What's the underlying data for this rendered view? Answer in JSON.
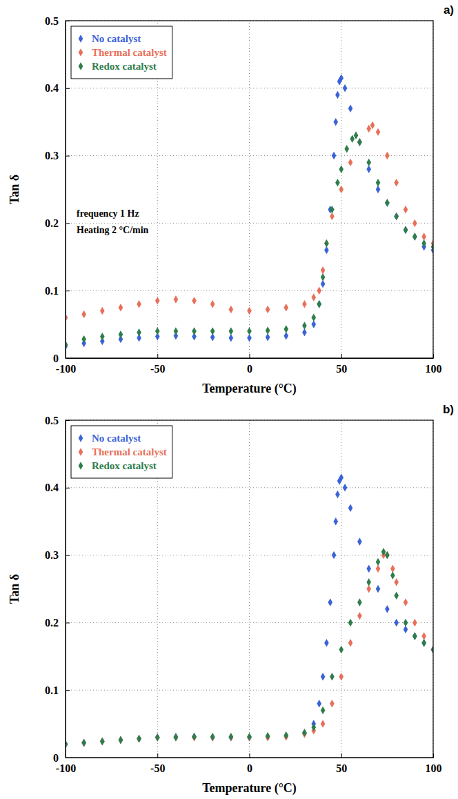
{
  "chart_data": [
    {
      "type": "scatter",
      "title": "a)",
      "xlabel": "Temperature (°C)",
      "ylabel": "Tan δ",
      "xlim": [
        -100,
        100
      ],
      "xticks": [
        -100,
        -50,
        0,
        50,
        100
      ],
      "ylim": [
        0,
        0.5
      ],
      "yticks": [
        0,
        0.1,
        0.2,
        0.3,
        0.4,
        0.5
      ],
      "grid": true,
      "legend": "upper left",
      "marker": "diamond",
      "annotations": [
        "frequency 1 Hz",
        "Heating 2 °C/min"
      ],
      "series": [
        {
          "name": "No catalyst",
          "color": "#3a63d6",
          "x": [
            -100,
            -90,
            -80,
            -70,
            -60,
            -50,
            -40,
            -30,
            -20,
            -10,
            0,
            10,
            20,
            30,
            35,
            38,
            40,
            42,
            44,
            46,
            47,
            48,
            49,
            50,
            52,
            55,
            60,
            65,
            70,
            75,
            80,
            85,
            90,
            95,
            100
          ],
          "values": [
            0.018,
            0.022,
            0.025,
            0.028,
            0.03,
            0.032,
            0.033,
            0.032,
            0.031,
            0.03,
            0.03,
            0.031,
            0.033,
            0.038,
            0.05,
            0.08,
            0.11,
            0.16,
            0.22,
            0.3,
            0.35,
            0.39,
            0.41,
            0.415,
            0.4,
            0.37,
            0.32,
            0.28,
            0.25,
            0.23,
            0.21,
            0.19,
            0.18,
            0.165,
            0.16
          ]
        },
        {
          "name": "Thermal catalyst",
          "color": "#e8705a",
          "x": [
            -100,
            -90,
            -80,
            -70,
            -60,
            -50,
            -40,
            -30,
            -20,
            -10,
            0,
            10,
            20,
            30,
            35,
            38,
            40,
            42,
            45,
            50,
            55,
            60,
            65,
            67,
            70,
            75,
            80,
            85,
            90,
            95,
            100
          ],
          "values": [
            0.06,
            0.065,
            0.07,
            0.075,
            0.08,
            0.085,
            0.087,
            0.085,
            0.08,
            0.072,
            0.07,
            0.072,
            0.075,
            0.08,
            0.09,
            0.1,
            0.13,
            0.17,
            0.21,
            0.25,
            0.29,
            0.32,
            0.34,
            0.345,
            0.335,
            0.3,
            0.26,
            0.22,
            0.2,
            0.18,
            0.17
          ]
        },
        {
          "name": "Redox catalyst",
          "color": "#2e7d4a",
          "x": [
            -100,
            -90,
            -80,
            -70,
            -60,
            -50,
            -40,
            -30,
            -20,
            -10,
            0,
            10,
            20,
            30,
            35,
            38,
            40,
            42,
            45,
            48,
            50,
            53,
            56,
            58,
            60,
            65,
            70,
            75,
            80,
            85,
            90,
            95,
            100
          ],
          "values": [
            0.02,
            0.028,
            0.032,
            0.035,
            0.038,
            0.04,
            0.04,
            0.04,
            0.04,
            0.04,
            0.04,
            0.041,
            0.043,
            0.048,
            0.06,
            0.08,
            0.12,
            0.17,
            0.22,
            0.26,
            0.28,
            0.31,
            0.325,
            0.33,
            0.32,
            0.29,
            0.26,
            0.23,
            0.21,
            0.19,
            0.18,
            0.17,
            0.165
          ]
        }
      ]
    },
    {
      "type": "scatter",
      "title": "b)",
      "xlabel": "Temperature (°C)",
      "ylabel": "Tan δ",
      "xlim": [
        -100,
        100
      ],
      "xticks": [
        -100,
        -50,
        0,
        50,
        100
      ],
      "ylim": [
        0,
        0.5
      ],
      "yticks": [
        0,
        0.1,
        0.2,
        0.3,
        0.4,
        0.5
      ],
      "grid": true,
      "legend": "upper left",
      "marker": "diamond",
      "series": [
        {
          "name": "No catalyst",
          "color": "#3a63d6",
          "x": [
            -100,
            -90,
            -80,
            -70,
            -60,
            -50,
            -40,
            -30,
            -20,
            -10,
            0,
            10,
            20,
            30,
            35,
            38,
            40,
            42,
            44,
            46,
            47,
            48,
            49,
            50,
            52,
            55,
            60,
            65,
            70,
            75,
            80,
            85,
            90,
            95,
            100
          ],
          "values": [
            0.02,
            0.022,
            0.024,
            0.026,
            0.028,
            0.03,
            0.031,
            0.031,
            0.03,
            0.03,
            0.03,
            0.031,
            0.032,
            0.036,
            0.05,
            0.08,
            0.12,
            0.17,
            0.23,
            0.3,
            0.35,
            0.39,
            0.41,
            0.415,
            0.4,
            0.37,
            0.32,
            0.28,
            0.25,
            0.22,
            0.2,
            0.19,
            0.18,
            0.17,
            0.16
          ]
        },
        {
          "name": "Thermal catalyst",
          "color": "#e8705a",
          "x": [
            -100,
            -90,
            -80,
            -70,
            -60,
            -50,
            -40,
            -30,
            -20,
            -10,
            0,
            10,
            20,
            30,
            35,
            40,
            45,
            50,
            55,
            60,
            65,
            70,
            73,
            75,
            78,
            80,
            85,
            90,
            95,
            100
          ],
          "values": [
            0.02,
            0.022,
            0.024,
            0.026,
            0.028,
            0.03,
            0.03,
            0.03,
            0.03,
            0.03,
            0.03,
            0.03,
            0.031,
            0.035,
            0.04,
            0.05,
            0.08,
            0.12,
            0.17,
            0.21,
            0.25,
            0.28,
            0.3,
            0.3,
            0.28,
            0.26,
            0.23,
            0.2,
            0.18,
            0.16
          ]
        },
        {
          "name": "Redox catalyst",
          "color": "#2e7d4a",
          "x": [
            -100,
            -90,
            -80,
            -70,
            -60,
            -50,
            -40,
            -30,
            -20,
            -10,
            0,
            10,
            20,
            30,
            35,
            40,
            45,
            50,
            55,
            60,
            65,
            70,
            73,
            75,
            78,
            80,
            85,
            90,
            95,
            100
          ],
          "values": [
            0.02,
            0.022,
            0.024,
            0.026,
            0.028,
            0.03,
            0.03,
            0.031,
            0.031,
            0.031,
            0.031,
            0.032,
            0.033,
            0.037,
            0.045,
            0.07,
            0.12,
            0.16,
            0.2,
            0.23,
            0.26,
            0.29,
            0.305,
            0.3,
            0.27,
            0.24,
            0.2,
            0.18,
            0.17,
            0.16
          ]
        }
      ]
    }
  ]
}
